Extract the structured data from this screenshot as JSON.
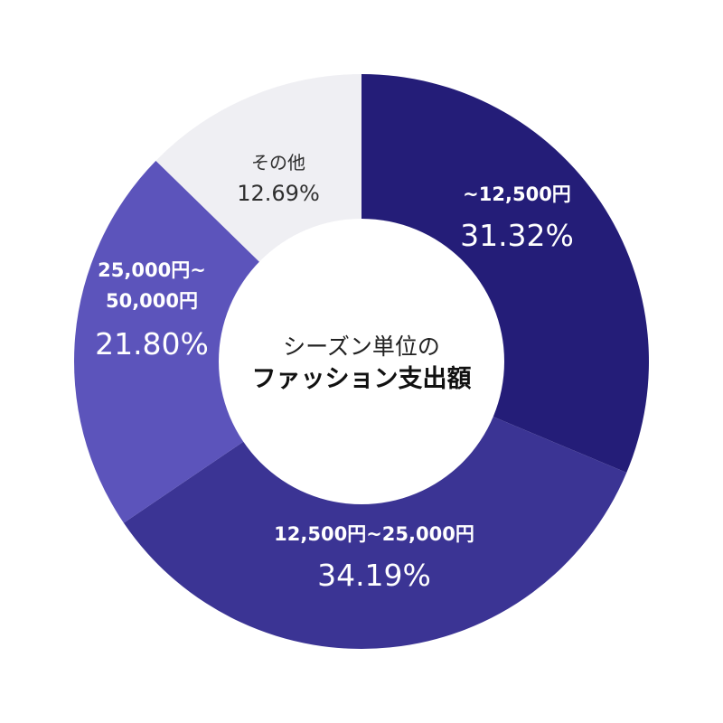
{
  "chart_data": {
    "type": "pie",
    "donut": true,
    "title_line1": "シーズン単位の",
    "title_line2": "ファッション支出額",
    "slices": [
      {
        "label_lines": [
          "~12,500円"
        ],
        "value": 31.32,
        "value_label": "31.32%",
        "color": "#241d78",
        "text": "light"
      },
      {
        "label_lines": [
          "12,500円~25,000円"
        ],
        "value": 34.19,
        "value_label": "34.19%",
        "color": "#3b3494",
        "text": "light"
      },
      {
        "label_lines": [
          "25,000円~",
          "50,000円"
        ],
        "value": 21.8,
        "value_label": "21.80%",
        "color": "#5c54bb",
        "text": "light"
      },
      {
        "label_lines": [
          "その他"
        ],
        "value": 12.69,
        "value_label": "12.69%",
        "color": "#efeff3",
        "text": "dark"
      }
    ]
  }
}
